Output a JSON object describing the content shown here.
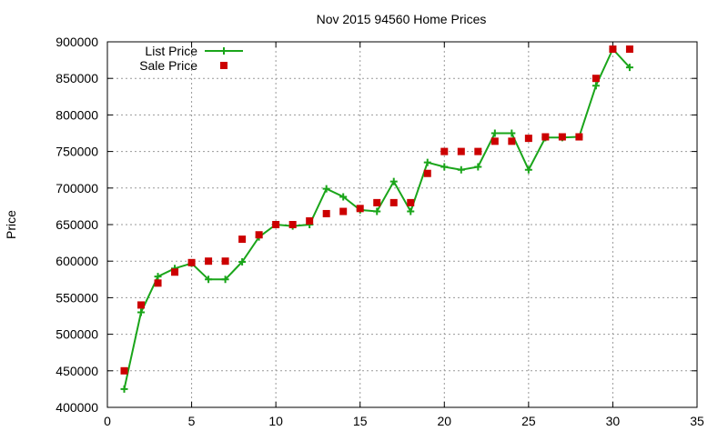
{
  "colors": {
    "list_line": "#1aa51a",
    "sale_point": "#cc0000",
    "grid": "#999999",
    "axis": "#000000"
  },
  "chart_data": {
    "type": "line",
    "title": "Nov 2015 94560 Home Prices",
    "xlabel": "",
    "ylabel": "Price",
    "xlim": [
      0,
      35
    ],
    "ylim": [
      400000,
      900000
    ],
    "xticks": [
      0,
      5,
      10,
      15,
      20,
      25,
      30,
      35
    ],
    "yticks": [
      400000,
      450000,
      500000,
      550000,
      600000,
      650000,
      700000,
      750000,
      800000,
      850000,
      900000
    ],
    "grid": true,
    "legend_position": "top-left",
    "x": [
      1,
      2,
      3,
      4,
      5,
      6,
      7,
      8,
      9,
      10,
      11,
      12,
      13,
      14,
      15,
      16,
      17,
      18,
      19,
      20,
      21,
      22,
      23,
      24,
      25,
      26,
      27,
      28,
      29,
      30,
      31
    ],
    "series": [
      {
        "name": "List Price",
        "style": "line-plus",
        "values": [
          425000,
          530000,
          579000,
          590000,
          597000,
          575000,
          575000,
          599000,
          633000,
          650000,
          648000,
          650000,
          699000,
          688000,
          670000,
          668000,
          709000,
          668000,
          735000,
          729000,
          725000,
          729000,
          775000,
          775000,
          725000,
          769000,
          769000,
          770000,
          840000,
          890000,
          865000
        ]
      },
      {
        "name": "Sale Price",
        "style": "square-points",
        "values": [
          450000,
          540000,
          570000,
          585000,
          598000,
          600000,
          600000,
          630000,
          636000,
          650000,
          650000,
          655000,
          665000,
          668000,
          672000,
          680000,
          680000,
          680000,
          720000,
          750000,
          750000,
          750000,
          764000,
          764000,
          768000,
          770000,
          770000,
          770000,
          850000,
          890000,
          890000
        ]
      }
    ]
  }
}
